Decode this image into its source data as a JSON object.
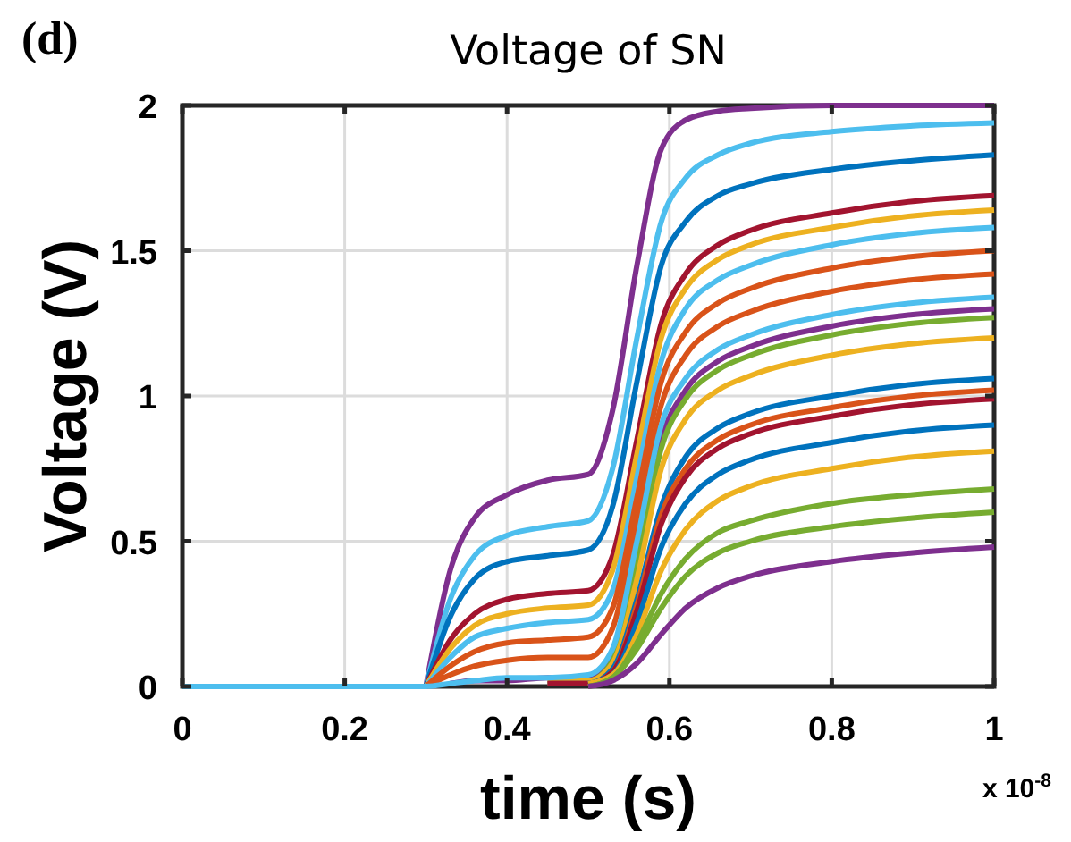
{
  "chart_data": {
    "type": "line",
    "title": "Voltage of SN",
    "xlabel": "time (s)",
    "ylabel": "Voltage (V)",
    "annotations": [
      "(d)",
      "x 10$^{-8}$"
    ],
    "x": [
      0,
      0.3,
      0.33,
      0.36,
      0.4,
      0.45,
      0.5,
      0.53,
      0.56,
      0.59,
      0.62,
      0.66,
      0.7,
      0.8,
      0.9,
      1
    ],
    "xlim": [
      0,
      1
    ],
    "xticks": [
      0,
      0.2,
      0.4,
      0.6,
      0.8,
      1
    ],
    "ylim": [
      0,
      2
    ],
    "yticks": [
      0,
      0.5,
      1,
      1.5,
      2
    ],
    "grid": true,
    "marker": "none",
    "line_style": "solid",
    "series": [
      {
        "color": "#7e2f8e",
        "values": [
          null,
          0,
          0.4,
          0.58,
          0.66,
          0.71,
          0.73,
          0.95,
          1.45,
          1.85,
          1.95,
          1.98,
          1.99,
          2.0,
          2.0,
          2.0
        ]
      },
      {
        "color": "#4dbeee",
        "values": [
          null,
          0,
          0.3,
          0.45,
          0.52,
          0.55,
          0.57,
          0.75,
          1.2,
          1.6,
          1.75,
          1.83,
          1.87,
          1.91,
          1.93,
          1.94
        ]
      },
      {
        "color": "#0072bd",
        "values": [
          null,
          0,
          0.24,
          0.37,
          0.43,
          0.45,
          0.47,
          0.62,
          1.05,
          1.45,
          1.6,
          1.69,
          1.73,
          1.78,
          1.81,
          1.83
        ]
      },
      {
        "color": "#a2142f",
        "values": [
          null,
          0,
          0.16,
          0.25,
          0.3,
          0.32,
          0.33,
          0.45,
          0.85,
          1.25,
          1.42,
          1.52,
          1.57,
          1.63,
          1.67,
          1.69
        ]
      },
      {
        "color": "#edb120",
        "values": [
          null,
          0,
          0.13,
          0.21,
          0.25,
          0.27,
          0.28,
          0.4,
          0.8,
          1.2,
          1.37,
          1.47,
          1.52,
          1.58,
          1.62,
          1.64
        ]
      },
      {
        "color": "#4dbeee",
        "values": [
          null,
          0,
          0.1,
          0.17,
          0.2,
          0.22,
          0.23,
          0.33,
          0.72,
          1.12,
          1.3,
          1.4,
          1.45,
          1.52,
          1.56,
          1.58
        ]
      },
      {
        "color": "#d95319",
        "values": [
          null,
          0,
          0.07,
          0.12,
          0.15,
          0.16,
          0.17,
          0.27,
          0.65,
          1.05,
          1.22,
          1.32,
          1.37,
          1.44,
          1.48,
          1.5
        ]
      },
      {
        "color": "#d95319",
        "values": [
          null,
          0,
          0.04,
          0.07,
          0.09,
          0.1,
          0.1,
          0.2,
          0.57,
          0.97,
          1.14,
          1.24,
          1.29,
          1.36,
          1.4,
          1.42
        ]
      },
      {
        "color": "#7e2f8e",
        "values": [
          null,
          null,
          0.01,
          0.02,
          0.02,
          0.03,
          0.03,
          0.11,
          0.45,
          0.85,
          1.02,
          1.12,
          1.17,
          1.24,
          1.28,
          1.3
        ]
      },
      {
        "color": "#77ac30",
        "values": [
          null,
          null,
          null,
          null,
          null,
          0.02,
          0.02,
          0.09,
          0.42,
          0.82,
          0.99,
          1.09,
          1.14,
          1.21,
          1.25,
          1.27
        ]
      },
      {
        "color": "#edb120",
        "values": [
          null,
          null,
          null,
          null,
          null,
          0.02,
          0.02,
          0.08,
          0.37,
          0.75,
          0.92,
          1.02,
          1.07,
          1.14,
          1.18,
          1.2
        ]
      },
      {
        "color": "#0072bd",
        "values": [
          null,
          null,
          null,
          null,
          null,
          0.01,
          0.01,
          0.06,
          0.3,
          0.62,
          0.79,
          0.89,
          0.94,
          1.0,
          1.04,
          1.06
        ]
      },
      {
        "color": "#d95319",
        "values": [
          null,
          null,
          null,
          null,
          null,
          0.01,
          0.01,
          0.05,
          0.28,
          0.59,
          0.75,
          0.85,
          0.9,
          0.96,
          1.0,
          1.02
        ]
      },
      {
        "color": "#a2142f",
        "values": [
          null,
          null,
          null,
          null,
          null,
          0.01,
          0.01,
          0.05,
          0.26,
          0.56,
          0.72,
          0.82,
          0.87,
          0.93,
          0.97,
          0.99
        ]
      },
      {
        "color": "#0072bd",
        "values": [
          null,
          null,
          null,
          null,
          null,
          null,
          0.01,
          0.04,
          0.22,
          0.48,
          0.63,
          0.73,
          0.78,
          0.84,
          0.88,
          0.9
        ]
      },
      {
        "color": "#edb120",
        "values": [
          null,
          null,
          null,
          null,
          null,
          null,
          0.01,
          0.04,
          0.18,
          0.4,
          0.54,
          0.64,
          0.69,
          0.75,
          0.79,
          0.81
        ]
      },
      {
        "color": "#77ac30",
        "values": [
          null,
          null,
          null,
          null,
          null,
          null,
          0,
          0.03,
          0.15,
          0.32,
          0.44,
          0.53,
          0.57,
          0.63,
          0.66,
          0.68
        ]
      },
      {
        "color": "#77ac30",
        "values": [
          null,
          null,
          null,
          null,
          null,
          null,
          0,
          0.03,
          0.13,
          0.27,
          0.38,
          0.46,
          0.5,
          0.55,
          0.58,
          0.6
        ]
      },
      {
        "color": "#7e2f8e",
        "values": [
          null,
          null,
          null,
          null,
          null,
          null,
          0,
          0.02,
          0.08,
          0.18,
          0.27,
          0.34,
          0.38,
          0.43,
          0.46,
          0.48
        ]
      },
      {
        "color": "#4dbeee",
        "values": [
          0,
          0,
          0.01,
          0.02,
          0.03,
          0.03,
          0.04,
          0.13,
          0.5,
          0.9,
          1.06,
          1.16,
          1.21,
          1.28,
          1.32,
          1.34
        ]
      }
    ]
  }
}
